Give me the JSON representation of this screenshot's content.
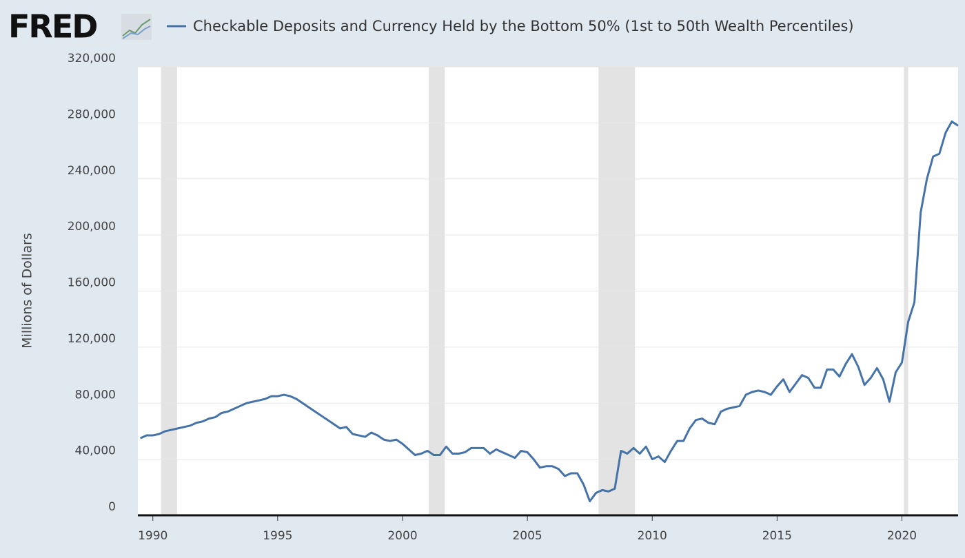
{
  "chart_data": {
    "type": "line",
    "logo": "FRED",
    "ylabel": "Millions of Dollars",
    "xlim": [
      1989.4,
      2022.25
    ],
    "ylim": [
      0,
      320000
    ],
    "xticks": [
      1990,
      1995,
      2000,
      2005,
      2010,
      2015,
      2020
    ],
    "yticks": [
      0,
      {
        "value": 40000,
        "label": "40,000"
      },
      {
        "value": 80000,
        "label": "80,000"
      },
      {
        "value": 120000,
        "label": "120,000"
      },
      {
        "value": 160000,
        "label": "160,000"
      },
      {
        "value": 200000,
        "label": "200,000"
      },
      {
        "value": 240000,
        "label": "240,000"
      },
      {
        "value": 280000,
        "label": "280,000"
      },
      {
        "value": 320000,
        "label": "320,000"
      }
    ],
    "grid": true,
    "recessions": [
      [
        1990.33,
        1990.97
      ],
      [
        2001.05,
        2001.69
      ],
      [
        2007.85,
        2009.31
      ],
      [
        2020.08,
        2020.25
      ]
    ],
    "x": [
      1989.5,
      1989.75,
      1990,
      1990.25,
      1990.5,
      1990.75,
      1991,
      1991.25,
      1991.5,
      1991.75,
      1992,
      1992.25,
      1992.5,
      1992.75,
      1993,
      1993.25,
      1993.5,
      1993.75,
      1994,
      1994.25,
      1994.5,
      1994.75,
      1995,
      1995.25,
      1995.5,
      1995.75,
      1996,
      1996.25,
      1996.5,
      1996.75,
      1997,
      1997.25,
      1997.5,
      1997.75,
      1998,
      1998.25,
      1998.5,
      1998.75,
      1999,
      1999.25,
      1999.5,
      1999.75,
      2000,
      2000.25,
      2000.5,
      2000.75,
      2001,
      2001.25,
      2001.5,
      2001.75,
      2002,
      2002.25,
      2002.5,
      2002.75,
      2003,
      2003.25,
      2003.5,
      2003.75,
      2004,
      2004.25,
      2004.5,
      2004.75,
      2005,
      2005.25,
      2005.5,
      2005.75,
      2006,
      2006.25,
      2006.5,
      2006.75,
      2007,
      2007.25,
      2007.5,
      2007.75,
      2008,
      2008.25,
      2008.5,
      2008.75,
      2009,
      2009.25,
      2009.5,
      2009.75,
      2010,
      2010.25,
      2010.5,
      2010.75,
      2011,
      2011.25,
      2011.5,
      2011.75,
      2012,
      2012.25,
      2012.5,
      2012.75,
      2013,
      2013.25,
      2013.5,
      2013.75,
      2014,
      2014.25,
      2014.5,
      2014.75,
      2015,
      2015.25,
      2015.5,
      2015.75,
      2016,
      2016.25,
      2016.5,
      2016.75,
      2017,
      2017.25,
      2017.5,
      2017.75,
      2018,
      2018.25,
      2018.5,
      2018.75,
      2019,
      2019.25,
      2019.5,
      2019.75,
      2020,
      2020.25,
      2020.5,
      2020.75,
      2021,
      2021.25,
      2021.5,
      2021.75,
      2022,
      2022.25
    ],
    "series": [
      {
        "name": "Checkable Deposits and Currency Held by the Bottom 50% (1st to 50th Wealth Percentiles)",
        "color": "#4572a7",
        "values": [
          55000,
          57000,
          57000,
          58000,
          60000,
          61000,
          62000,
          63000,
          64000,
          66000,
          67000,
          69000,
          70000,
          73000,
          74000,
          76000,
          78000,
          80000,
          81000,
          82000,
          83000,
          85000,
          85000,
          86000,
          85000,
          83000,
          80000,
          77000,
          74000,
          71000,
          68000,
          65000,
          62000,
          63000,
          58000,
          57000,
          56000,
          59000,
          57000,
          54000,
          53000,
          54000,
          51000,
          47000,
          43000,
          44000,
          46000,
          43000,
          43000,
          49000,
          44000,
          44000,
          45000,
          48000,
          48000,
          48000,
          44000,
          47000,
          45000,
          43000,
          41000,
          46000,
          45000,
          40000,
          34000,
          35000,
          35000,
          33000,
          28000,
          30000,
          30000,
          22000,
          10000,
          16000,
          18000,
          17000,
          19000,
          46000,
          44000,
          48000,
          44000,
          49000,
          40000,
          42000,
          38000,
          46000,
          53000,
          53000,
          62000,
          68000,
          69000,
          66000,
          65000,
          74000,
          76000,
          77000,
          78000,
          86000,
          88000,
          89000,
          88000,
          86000,
          92000,
          97000,
          88000,
          94000,
          100000,
          98000,
          91000,
          91000,
          104000,
          104000,
          99000,
          108000,
          115000,
          106000,
          93000,
          98000,
          105000,
          97000,
          81000,
          102000,
          109000,
          138000,
          152000,
          216000,
          240000,
          256000,
          258000,
          273000,
          281000,
          278000
        ]
      }
    ]
  }
}
